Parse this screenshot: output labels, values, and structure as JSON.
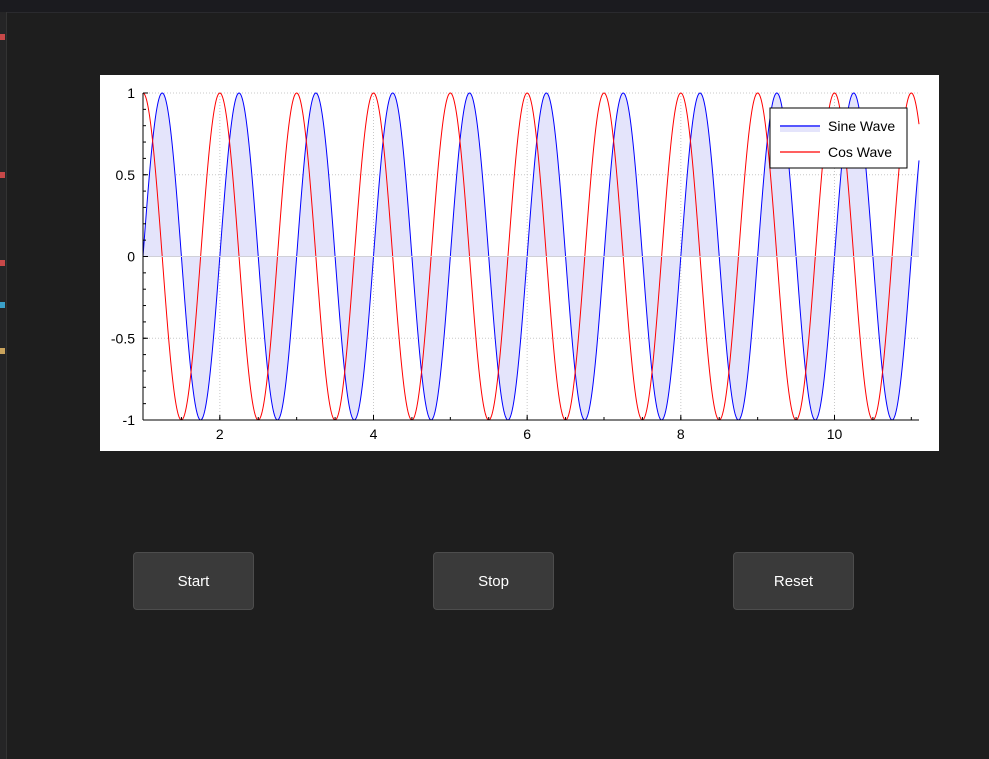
{
  "buttons": {
    "start": "Start",
    "stop": "Stop",
    "reset": "Reset"
  },
  "chart_data": {
    "type": "line",
    "title": "",
    "xlabel": "",
    "ylabel": "",
    "xlim": [
      1.0,
      11.1
    ],
    "ylim": [
      -1,
      1
    ],
    "x_ticks": [
      2,
      4,
      6,
      8,
      10
    ],
    "y_ticks": [
      "1",
      "0.5",
      "0",
      "-0.5",
      "-1"
    ],
    "y_tick_values": [
      1,
      0.5,
      0,
      -0.5,
      -1
    ],
    "grid": true,
    "legend_position": "top-right",
    "series": [
      {
        "name": "Sine Wave",
        "function": "sin(2*pi*x)",
        "color": "#0000ff",
        "fill_to_zero": true,
        "fill_color": "#e4e4fb"
      },
      {
        "name": "Cos Wave",
        "function": "cos(2*pi*x)",
        "color": "#ff0000",
        "fill_to_zero": false
      }
    ]
  }
}
